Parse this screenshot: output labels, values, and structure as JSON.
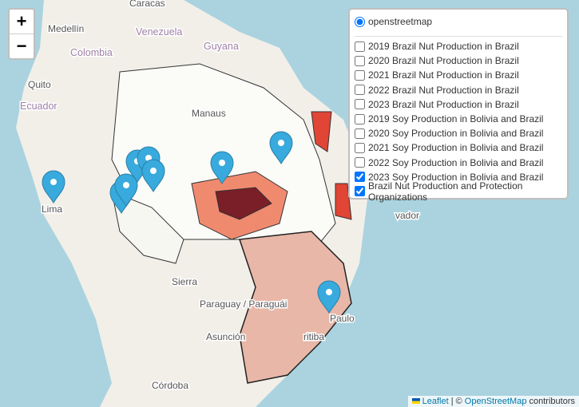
{
  "zoom": {
    "in": "+",
    "out": "−"
  },
  "base_layer": {
    "label": "openstreetmap",
    "checked": true
  },
  "overlays": [
    {
      "label": "2019 Brazil Nut Production in Brazil",
      "checked": false
    },
    {
      "label": "2020 Brazil Nut Production in Brazil",
      "checked": false
    },
    {
      "label": "2021 Brazil Nut Production in Brazil",
      "checked": false
    },
    {
      "label": "2022 Brazil Nut Production in Brazil",
      "checked": false
    },
    {
      "label": "2023 Brazil Nut Production in Brazil",
      "checked": false
    },
    {
      "label": "2019 Soy Production in Bolivia and Brazil",
      "checked": false
    },
    {
      "label": "2020 Soy Production in Bolivia and Brazil",
      "checked": false
    },
    {
      "label": "2021 Soy Production in Bolivia and Brazil",
      "checked": false
    },
    {
      "label": "2022 Soy Production in Bolivia and Brazil",
      "checked": false
    },
    {
      "label": "2023 Soy Production in Bolivia and Brazil",
      "checked": true
    },
    {
      "label": "Brazil Nut Production and Protection Organizations",
      "checked": true
    }
  ],
  "place_labels": [
    "Caracas",
    "Medellín",
    "Venezuela",
    "Guyana",
    "Colombia",
    "Quito",
    "Ecuador",
    "Lima",
    "Manaus",
    "vador",
    "Sierra",
    "Paraguay / Paraguái",
    "Asunción",
    "Paulo",
    "ritiba",
    "Córdoba"
  ],
  "attribution": {
    "leaflet": "Leaflet",
    "separator": "| ©",
    "osm": "OpenStreetMap",
    "tail": "contributors"
  }
}
